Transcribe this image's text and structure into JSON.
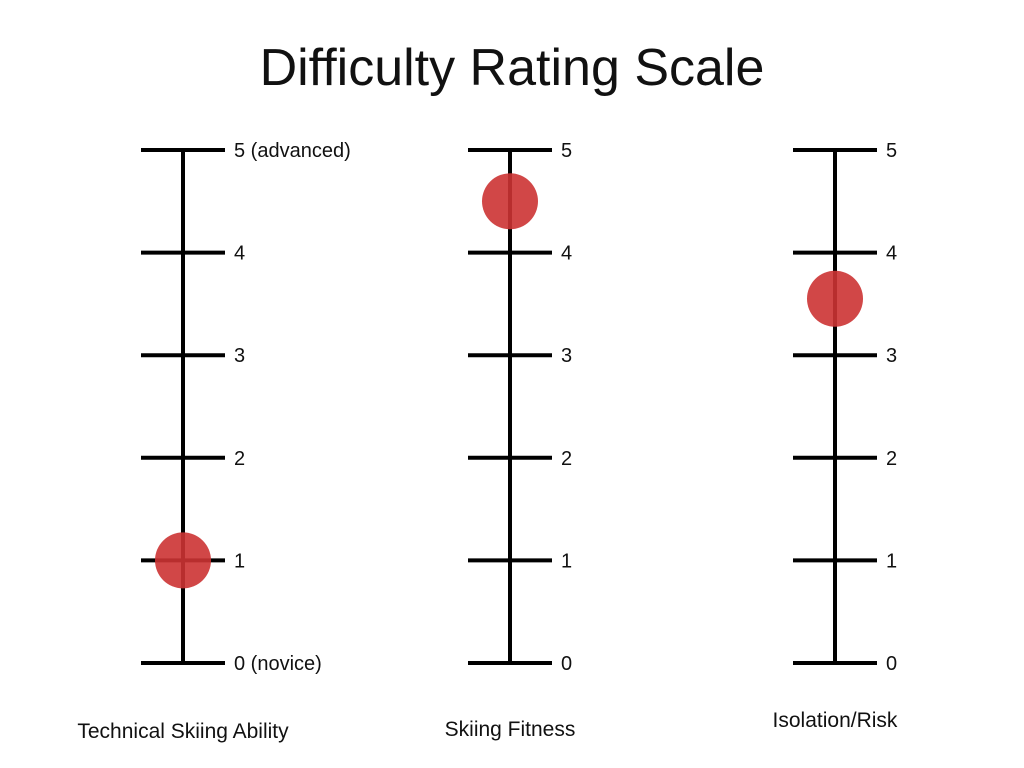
{
  "title": "Difficulty Rating Scale",
  "chart_data": {
    "type": "scatter",
    "title": "Difficulty Rating Scale",
    "ylim": [
      0,
      5
    ],
    "marker_color": "#cc3333",
    "scales": [
      {
        "name": "Technical Skiing Ability",
        "value": 1,
        "tick_labels": [
          "0 (novice)",
          "1",
          "2",
          "3",
          "4",
          "5 (advanced)"
        ]
      },
      {
        "name": "Skiing Fitness",
        "value": 4.5,
        "tick_labels": [
          "0",
          "1",
          "2",
          "3",
          "4",
          "5"
        ]
      },
      {
        "name": "Isolation/Risk",
        "value": 3.55,
        "tick_labels": [
          "0",
          "1",
          "2",
          "3",
          "4",
          "5"
        ]
      }
    ]
  }
}
